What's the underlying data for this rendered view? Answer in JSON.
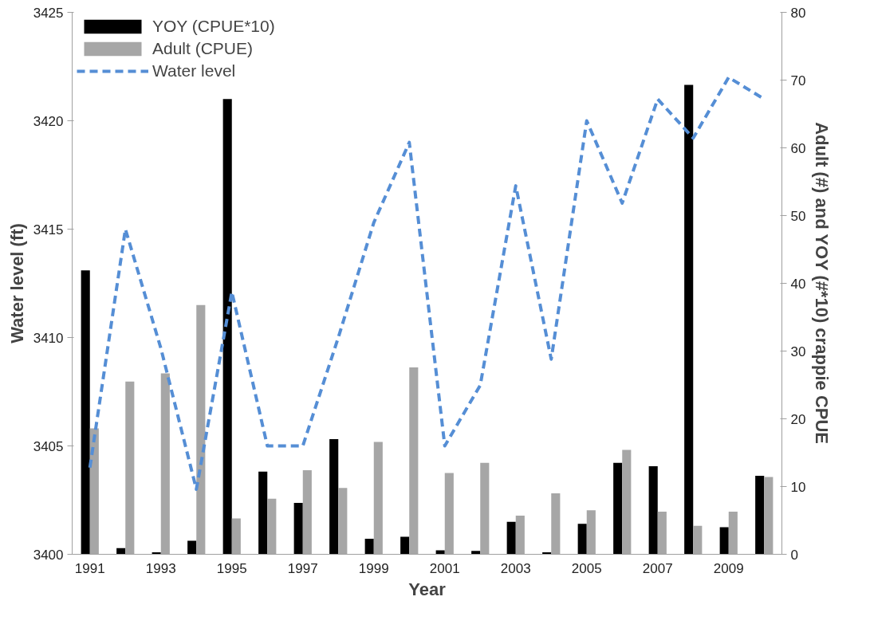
{
  "chart_data": {
    "type": "bar",
    "xlabel": "Year",
    "ylabel": "Water level (ft)",
    "y2label": "Adult (#) and YOY (#*10) crappie CPUE",
    "categories": [
      "1991",
      null,
      "1993",
      null,
      "1995",
      null,
      "1997",
      null,
      "1999",
      null,
      "2001",
      null,
      "2003",
      null,
      "2005",
      null,
      "2007",
      null,
      "2009",
      null
    ],
    "series": [
      {
        "name": "YOY (CPUE*10)",
        "axis": "y2",
        "color": "#000000",
        "values": [
          41.9,
          0.9,
          0.3,
          2.0,
          67.2,
          12.2,
          7.6,
          17.0,
          2.3,
          2.6,
          0.6,
          0.5,
          4.8,
          0.3,
          4.5,
          13.5,
          13.0,
          69.3,
          4.0,
          11.6
        ]
      },
      {
        "name": "Adult (CPUE)",
        "axis": "y2",
        "color": "#a6a6a6",
        "values": [
          18.6,
          25.5,
          26.7,
          36.8,
          5.3,
          8.2,
          12.4,
          9.8,
          16.6,
          27.6,
          12.0,
          13.5,
          5.7,
          9.0,
          6.5,
          15.4,
          6.3,
          4.2,
          6.3,
          11.4
        ]
      },
      {
        "name": "Water level",
        "type": "line",
        "line_style": "dashed",
        "color": "#558ed5",
        "values": [
          3404.0,
          3415.0,
          3409.5,
          3403.0,
          3412.1,
          3405.0,
          3405.0,
          3410.0,
          3415.3,
          3419.0,
          3405.0,
          3407.8,
          3417.0,
          3409.0,
          3420.0,
          3416.2,
          3421.0,
          3419.2,
          3422.0,
          3421.0
        ]
      }
    ],
    "ylim": [
      3400,
      3425
    ],
    "yticks": [
      3400,
      3405,
      3410,
      3415,
      3420,
      3425
    ],
    "y2lim": [
      0,
      80
    ],
    "y2ticks": [
      0,
      10,
      20,
      30,
      40,
      50,
      60,
      70,
      80
    ],
    "grid": false,
    "legend": "top left",
    "marker": "none"
  }
}
